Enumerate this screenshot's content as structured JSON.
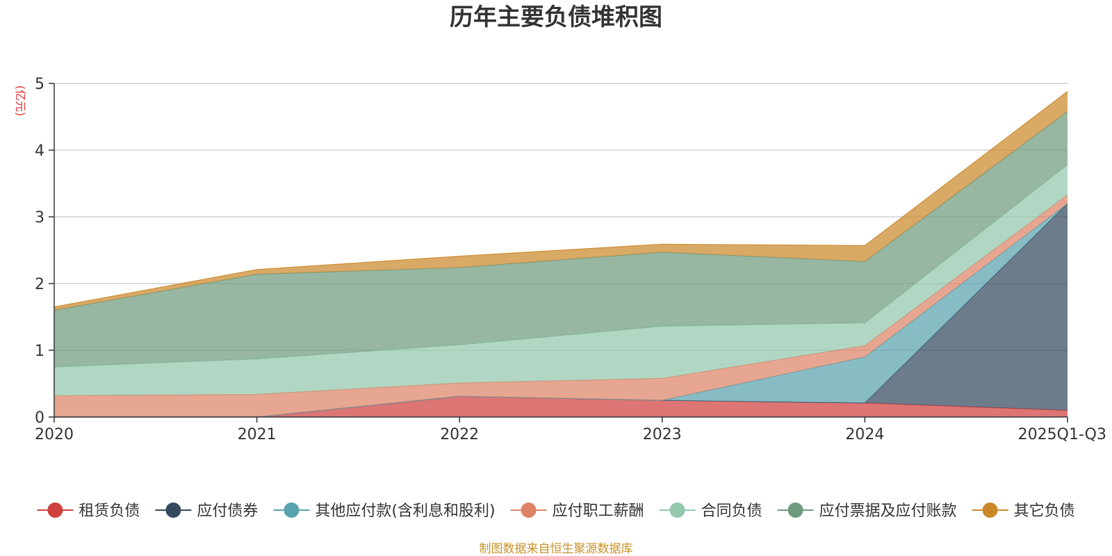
{
  "chart_data": {
    "type": "area",
    "stacked": true,
    "title": "历年主要负债堆积图",
    "unit_label": "(亿元)",
    "categories": [
      "2020",
      "2021",
      "2022",
      "2023",
      "2024",
      "2025Q1-Q3"
    ],
    "ylim": [
      0,
      5
    ],
    "yticks": [
      "0",
      "1",
      "2",
      "3",
      "4",
      "5"
    ],
    "grid": true,
    "legend_position": "bottom",
    "source": "制图数据来自恒生聚源数据库",
    "unit_color": "#e03030",
    "source_color": "#c8922a",
    "series": [
      {
        "name": "租赁负债",
        "color": "#d0403f",
        "values": [
          0.0,
          0.0,
          0.31,
          0.25,
          0.21,
          0.1
        ]
      },
      {
        "name": "应付债券",
        "color": "#34495e",
        "values": [
          0.0,
          0.0,
          0.0,
          0.0,
          0.0,
          3.1
        ]
      },
      {
        "name": "其他应付款(含利息和股利)",
        "color": "#5aa2ae",
        "values": [
          0.0,
          0.0,
          0.0,
          0.0,
          0.69,
          0.0
        ]
      },
      {
        "name": "应付职工薪酬",
        "color": "#dd8467",
        "values": [
          0.32,
          0.34,
          0.2,
          0.33,
          0.17,
          0.13
        ]
      },
      {
        "name": "合同负债",
        "color": "#93c8ad",
        "values": [
          0.43,
          0.53,
          0.57,
          0.78,
          0.34,
          0.45
        ]
      },
      {
        "name": "应付票据及应付账款",
        "color": "#6f9b7e",
        "values": [
          0.85,
          1.27,
          1.16,
          1.11,
          0.92,
          0.8
        ]
      },
      {
        "name": "其它负债",
        "color": "#cb882b",
        "values": [
          0.05,
          0.07,
          0.17,
          0.12,
          0.24,
          0.3
        ]
      }
    ]
  }
}
